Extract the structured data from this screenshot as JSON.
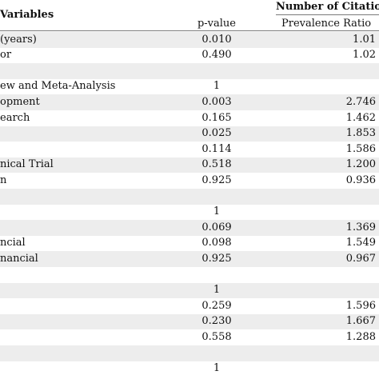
{
  "header": {
    "variables": "Variables",
    "number_of_citations": "Number of Citatio",
    "p_value": "p-value",
    "prevalence_ratio": "Prevalence Ratio"
  },
  "rows": [
    {
      "label": "(years)",
      "p": "0.010",
      "pr": "1.01"
    },
    {
      "label": "or",
      "p": "0.490",
      "pr": "1.02"
    },
    {
      "label": "",
      "p": "",
      "pr": ""
    },
    {
      "label": "ew and Meta-Analysis",
      "p": "1",
      "pr": ""
    },
    {
      "label": "opment",
      "p": "0.003",
      "pr": "2.746"
    },
    {
      "label": "earch",
      "p": "0.165",
      "pr": "1.462"
    },
    {
      "label": "",
      "p": "0.025",
      "pr": "1.853"
    },
    {
      "label": "",
      "p": "0.114",
      "pr": "1.586"
    },
    {
      "label": "nical Trial",
      "p": "0.518",
      "pr": "1.200"
    },
    {
      "label": "n",
      "p": "0.925",
      "pr": "0.936"
    },
    {
      "label": "",
      "p": "",
      "pr": ""
    },
    {
      "label": "",
      "p": "1",
      "pr": ""
    },
    {
      "label": "",
      "p": "0.069",
      "pr": "1.369"
    },
    {
      "label": "ncial",
      "p": "0.098",
      "pr": "1.549"
    },
    {
      "label": "nancial",
      "p": "0.925",
      "pr": "0.967"
    },
    {
      "label": "",
      "p": "",
      "pr": ""
    },
    {
      "label": "",
      "p": "1",
      "pr": ""
    },
    {
      "label": "",
      "p": "0.259",
      "pr": "1.596"
    },
    {
      "label": "",
      "p": "0.230",
      "pr": "1.667"
    },
    {
      "label": "",
      "p": "0.558",
      "pr": "1.288"
    },
    {
      "label": "",
      "p": "",
      "pr": ""
    },
    {
      "label": "",
      "p": "1",
      "pr": ""
    }
  ]
}
